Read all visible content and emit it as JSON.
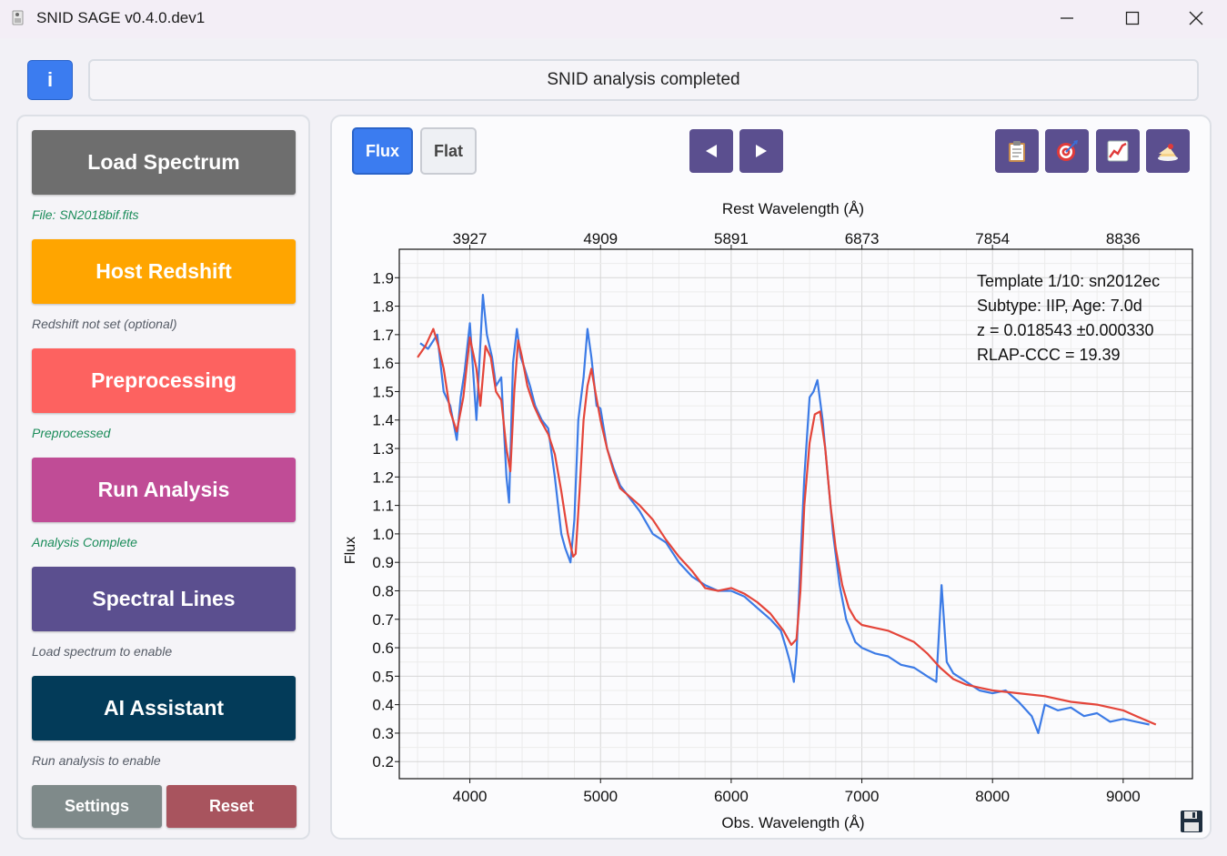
{
  "window": {
    "title": "SNID SAGE v0.4.0.dev1",
    "icon": "app-icon",
    "controls": [
      "minimize-icon",
      "maximize-icon",
      "close-icon"
    ]
  },
  "header": {
    "info_label": "i",
    "status_text": "SNID analysis completed"
  },
  "workflow": {
    "load_spectrum": {
      "label": "Load Spectrum",
      "status": "File: SN2018bif.fits",
      "color": "#6e6e6e"
    },
    "host_redshift": {
      "label": "Host Redshift",
      "status": "Redshift not set (optional)",
      "color": "#ffa500"
    },
    "preprocessing": {
      "label": "Preprocessing",
      "status": "Preprocessed",
      "color": "#fd6260"
    },
    "run_analysis": {
      "label": "Run Analysis",
      "status": "Analysis Complete",
      "color": "#c04c96"
    },
    "spectral_lines": {
      "label": "Spectral Lines",
      "status": "Load spectrum to enable",
      "color": "#5b4f8f"
    },
    "ai_assistant": {
      "label": "AI Assistant",
      "status": "Run analysis to enable",
      "color": "#033b59"
    },
    "settings_label": "Settings",
    "reset_label": "Reset"
  },
  "toolbar": {
    "flux_label": "Flux",
    "flat_label": "Flat",
    "prev_icon": "triangle-left-icon",
    "next_icon": "triangle-right-icon",
    "tools": [
      "clipboard-icon",
      "target-icon",
      "chart-icon",
      "cake-icon"
    ]
  },
  "chart_data": {
    "type": "line",
    "title": "",
    "xlabel": "Obs. Wavelength (Å)",
    "ylabel": "Flux",
    "x2label": "Rest Wavelength (Å)",
    "xlim": [
      3460,
      9530
    ],
    "ylim": [
      0.14,
      2.0
    ],
    "x_ticks": [
      4000,
      5000,
      6000,
      7000,
      8000,
      9000
    ],
    "x2_ticks": [
      3927,
      4909,
      5891,
      6873,
      7854,
      8836
    ],
    "y_ticks": [
      0.2,
      0.3,
      0.4,
      0.5,
      0.6,
      0.7,
      0.8,
      0.9,
      1.0,
      1.1,
      1.2,
      1.3,
      1.4,
      1.5,
      1.6,
      1.7,
      1.8,
      1.9
    ],
    "grid": true,
    "annotation": [
      "Template 1/10: sn2012ec",
      "Subtype: IIP, Age: 7.0d",
      "z = 0.018543 ±0.000330",
      "RLAP-CCC = 19.39"
    ],
    "series": [
      {
        "color": "#3c7be6",
        "x": [
          3620,
          3680,
          3750,
          3800,
          3850,
          3900,
          3930,
          3960,
          4000,
          4050,
          4100,
          4130,
          4170,
          4200,
          4240,
          4280,
          4300,
          4330,
          4360,
          4390,
          4420,
          4460,
          4500,
          4550,
          4600,
          4650,
          4700,
          4730,
          4770,
          4800,
          4830,
          4870,
          4900,
          4930,
          4970,
          5000,
          5050,
          5100,
          5150,
          5200,
          5300,
          5400,
          5500,
          5600,
          5700,
          5800,
          5900,
          6000,
          6100,
          6200,
          6300,
          6380,
          6420,
          6450,
          6480,
          6500,
          6530,
          6560,
          6600,
          6630,
          6660,
          6700,
          6740,
          6780,
          6830,
          6880,
          6950,
          7000,
          7100,
          7200,
          7300,
          7400,
          7500,
          7570,
          7610,
          7650,
          7700,
          7800,
          7900,
          8000,
          8100,
          8200,
          8300,
          8350,
          8400,
          8500,
          8600,
          8700,
          8800,
          8900,
          9000,
          9100,
          9200
        ],
        "values": [
          1.67,
          1.65,
          1.7,
          1.5,
          1.45,
          1.33,
          1.48,
          1.57,
          1.74,
          1.4,
          1.84,
          1.7,
          1.62,
          1.52,
          1.55,
          1.2,
          1.11,
          1.6,
          1.72,
          1.62,
          1.58,
          1.52,
          1.45,
          1.4,
          1.37,
          1.2,
          1.0,
          0.95,
          0.9,
          1.05,
          1.4,
          1.55,
          1.72,
          1.62,
          1.45,
          1.44,
          1.3,
          1.23,
          1.17,
          1.14,
          1.08,
          1.0,
          0.97,
          0.9,
          0.85,
          0.82,
          0.8,
          0.8,
          0.78,
          0.74,
          0.7,
          0.66,
          0.6,
          0.55,
          0.48,
          0.58,
          0.9,
          1.2,
          1.48,
          1.5,
          1.54,
          1.4,
          1.2,
          1.0,
          0.82,
          0.7,
          0.62,
          0.6,
          0.58,
          0.57,
          0.54,
          0.53,
          0.5,
          0.48,
          0.82,
          0.55,
          0.51,
          0.48,
          0.45,
          0.44,
          0.45,
          0.41,
          0.36,
          0.3,
          0.4,
          0.38,
          0.39,
          0.36,
          0.37,
          0.34,
          0.35,
          0.34,
          0.33
        ]
      },
      {
        "color": "#e4453a",
        "x": [
          3600,
          3660,
          3720,
          3760,
          3800,
          3850,
          3900,
          3950,
          4000,
          4050,
          4080,
          4120,
          4160,
          4200,
          4240,
          4280,
          4310,
          4340,
          4370,
          4400,
          4440,
          4490,
          4540,
          4600,
          4650,
          4700,
          4750,
          4790,
          4810,
          4840,
          4870,
          4900,
          4930,
          4960,
          5000,
          5050,
          5100,
          5150,
          5200,
          5300,
          5400,
          5500,
          5600,
          5700,
          5800,
          5900,
          6000,
          6100,
          6200,
          6300,
          6400,
          6460,
          6500,
          6530,
          6560,
          6600,
          6640,
          6680,
          6720,
          6760,
          6800,
          6850,
          6900,
          6950,
          7000,
          7100,
          7200,
          7300,
          7400,
          7500,
          7600,
          7700,
          7800,
          7900,
          8000,
          8200,
          8400,
          8600,
          8800,
          9000,
          9100,
          9250
        ],
        "values": [
          1.62,
          1.66,
          1.72,
          1.66,
          1.58,
          1.43,
          1.36,
          1.48,
          1.69,
          1.58,
          1.45,
          1.66,
          1.62,
          1.5,
          1.47,
          1.3,
          1.22,
          1.5,
          1.68,
          1.62,
          1.52,
          1.45,
          1.4,
          1.35,
          1.28,
          1.15,
          1.0,
          0.92,
          0.93,
          1.15,
          1.4,
          1.52,
          1.58,
          1.5,
          1.4,
          1.3,
          1.22,
          1.16,
          1.14,
          1.1,
          1.05,
          0.98,
          0.92,
          0.87,
          0.81,
          0.8,
          0.81,
          0.79,
          0.76,
          0.72,
          0.66,
          0.61,
          0.63,
          0.8,
          1.1,
          1.32,
          1.42,
          1.43,
          1.3,
          1.1,
          0.95,
          0.82,
          0.74,
          0.7,
          0.68,
          0.67,
          0.66,
          0.64,
          0.62,
          0.58,
          0.53,
          0.49,
          0.47,
          0.46,
          0.45,
          0.44,
          0.43,
          0.41,
          0.4,
          0.38,
          0.36,
          0.33
        ]
      }
    ]
  },
  "footer": {
    "save_icon": "save-icon"
  }
}
